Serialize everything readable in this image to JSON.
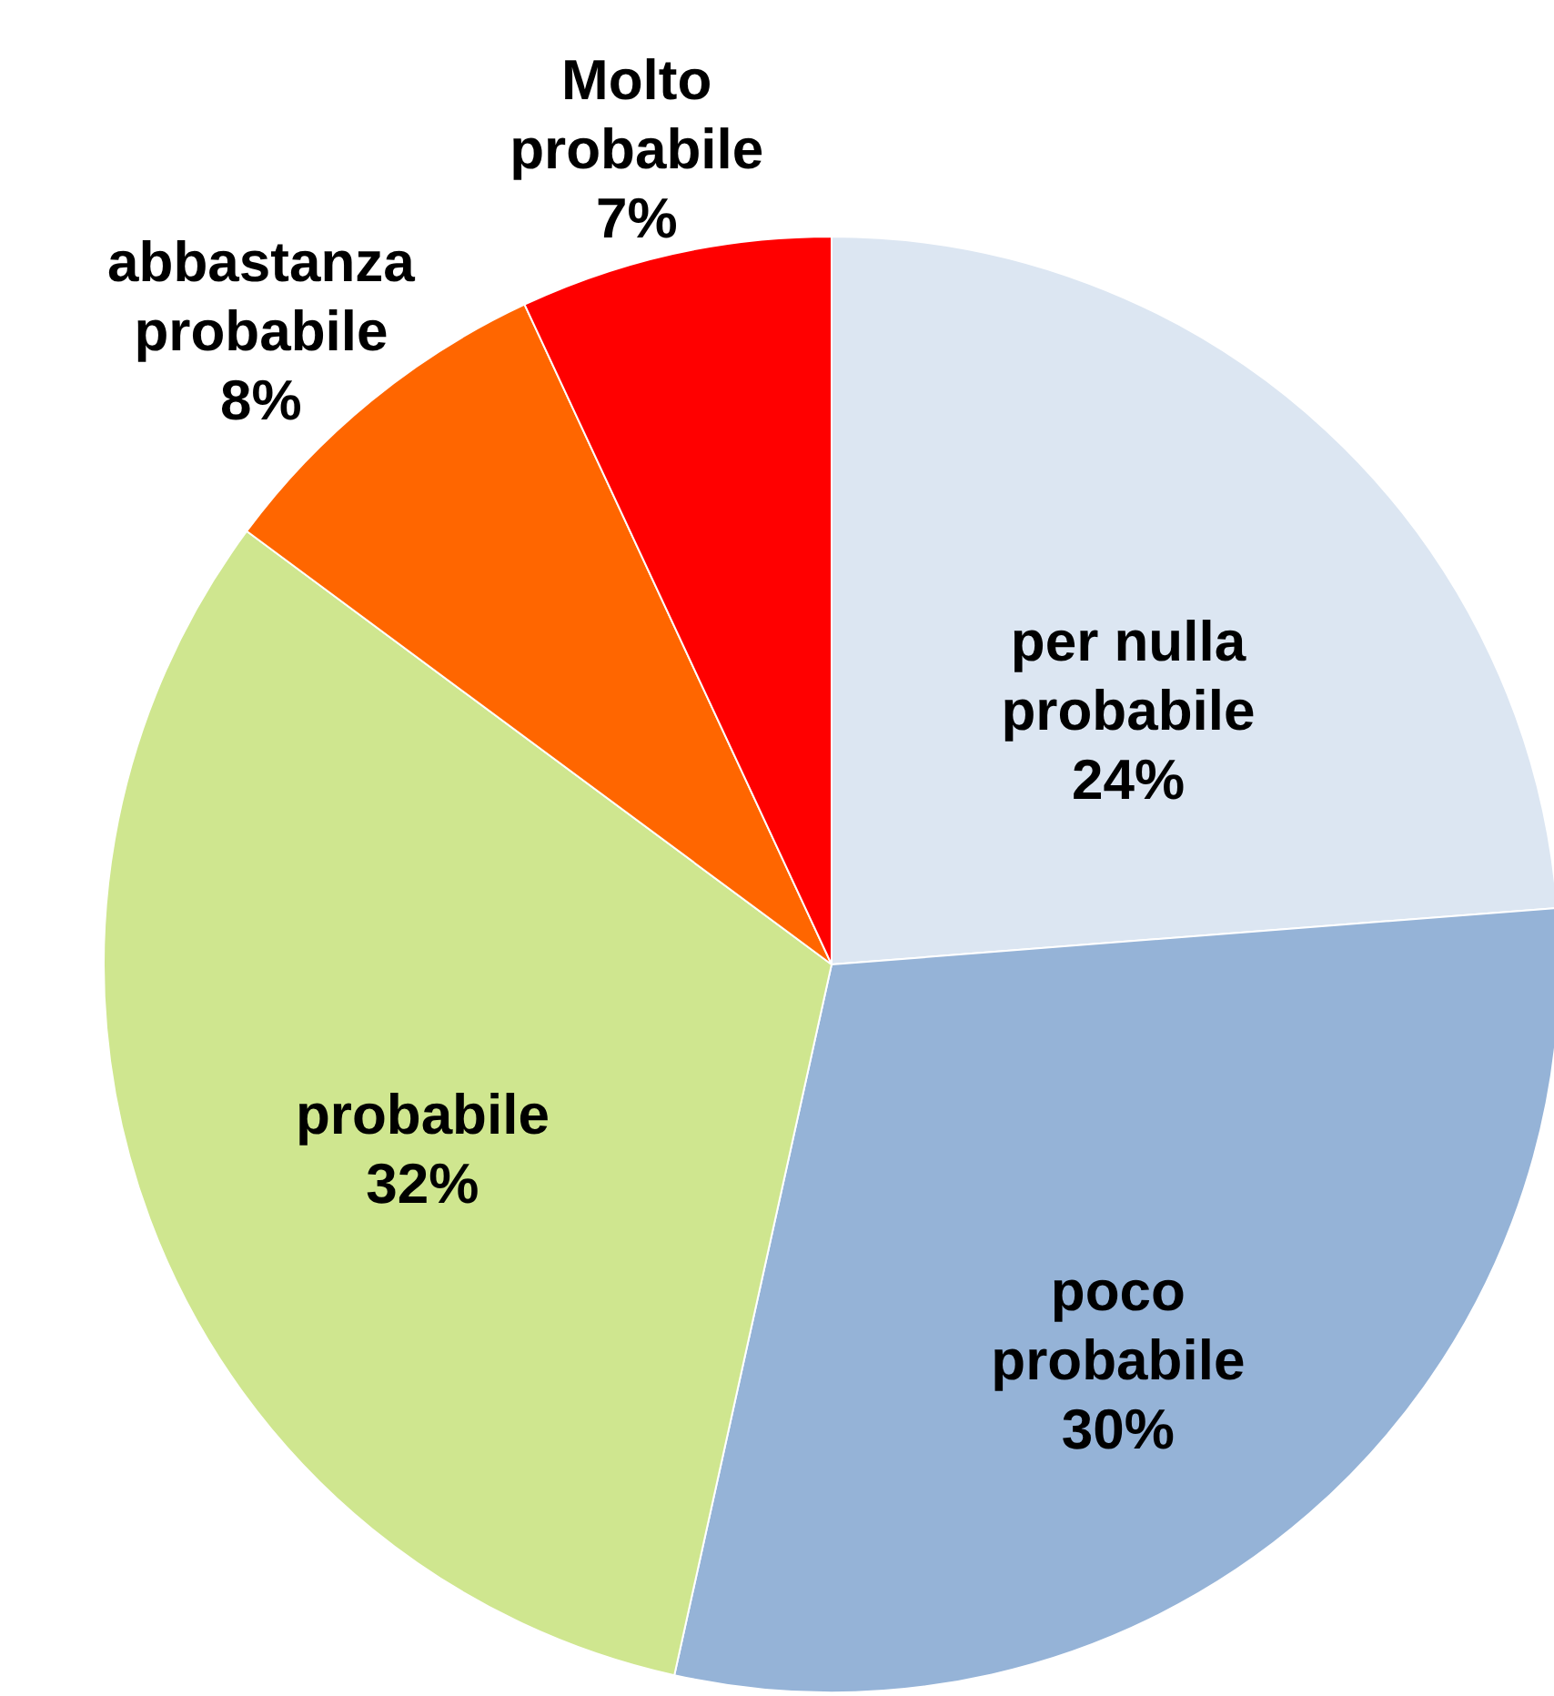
{
  "chart_data": {
    "type": "pie",
    "categories": [
      "per nulla probabile",
      "poco probabile",
      "probabile",
      "abbastanza probabile",
      "Molto probabile"
    ],
    "values": [
      24,
      30,
      32,
      8,
      7
    ],
    "value_labels": [
      "24%",
      "30%",
      "32%",
      "8%",
      "7%"
    ],
    "colors": [
      "#dce6f2",
      "#95b3d7",
      "#cfe68f",
      "#ff6600",
      "#ff0000"
    ],
    "legend": false
  }
}
